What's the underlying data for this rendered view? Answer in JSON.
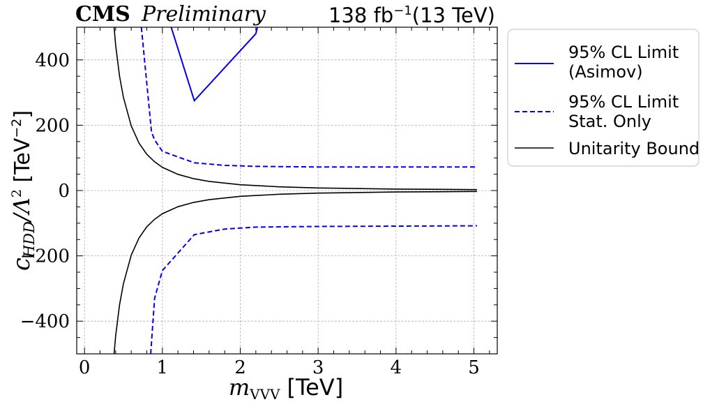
{
  "header": {
    "experiment": "CMS",
    "status": "Preliminary",
    "lumi_value": "138 fb",
    "lumi_exponent": "−1",
    "energy": "(13 TeV)"
  },
  "axes": {
    "x_symbol": "m",
    "x_subscript": "VVV",
    "x_unit": "[TeV]",
    "y_symbol": "c",
    "y_subscript": "HDD",
    "y_mid": "/Λ",
    "y_sup": "2",
    "y_unit_base": " [TeV",
    "y_unit_exp": "−2",
    "y_unit_close": "]"
  },
  "legend": {
    "items": [
      {
        "line1": "95% CL Limit",
        "line2": "(Asimov)",
        "color": "#0000ee",
        "dash": "solid"
      },
      {
        "line1": "95% CL Limit",
        "line2": "Stat. Only",
        "color": "#0000ee",
        "dash": "dashed"
      },
      {
        "line1": "Unitarity Bound",
        "line2": "",
        "color": "#000000",
        "dash": "solid"
      }
    ]
  },
  "chart_data": {
    "type": "line",
    "xlim": [
      -0.1,
      5.3
    ],
    "ylim": [
      -500,
      500
    ],
    "xticks": [
      0,
      1,
      2,
      3,
      4,
      5
    ],
    "yticks": [
      -400,
      -200,
      0,
      200,
      400
    ],
    "xtick_labels": [
      "0",
      "1",
      "2",
      "3",
      "4",
      "5"
    ],
    "ytick_labels": [
      "−400",
      "−200",
      "0",
      "200",
      "400"
    ],
    "grid": true,
    "legend_placement": "outside-right",
    "series": [
      {
        "name": "95% CL Limit (Asimov)",
        "color": "#0000ee",
        "style": "solid",
        "x": [
          1.1,
          1.41,
          2.2,
          2.22
        ],
        "y": [
          510,
          275,
          480,
          500
        ]
      },
      {
        "name": "95% CL Limit Stat. Only",
        "color": "#0000ee",
        "style": "dashed",
        "segments": [
          {
            "x": [
              0.73,
              0.86,
              0.9,
              1.0,
              1.41,
              1.8,
              2.2,
              3.0,
              4.0,
              5.04
            ],
            "y": [
              500,
              180,
              155,
              120,
              85,
              77,
              74,
              72,
              72,
              72
            ]
          },
          {
            "x": [
              0.85,
              0.9,
              1.0,
              1.41,
              1.8,
              2.2,
              3.0,
              4.0,
              5.04
            ],
            "y": [
              -500,
              -330,
              -245,
              -135,
              -118,
              -112,
              -110,
              -109,
              -108
            ]
          }
        ]
      },
      {
        "name": "Unitarity Bound",
        "color": "#000000",
        "style": "solid",
        "segments": [
          {
            "x": [
              0.38,
              0.4,
              0.45,
              0.5,
              0.6,
              0.7,
              0.8,
              0.9,
              1.0,
              1.2,
              1.4,
              1.6,
              2.0,
              2.5,
              3.0,
              4.0,
              5.04
            ],
            "y": [
              500,
              445,
              350,
              285,
              198,
              145,
              111,
              88,
              71,
              49.5,
              36.4,
              27.9,
              17.8,
              11.4,
              7.9,
              4.5,
              2.8
            ]
          },
          {
            "x": [
              0.38,
              0.4,
              0.45,
              0.5,
              0.6,
              0.7,
              0.8,
              0.9,
              1.0,
              1.2,
              1.4,
              1.6,
              2.0,
              2.5,
              3.0,
              4.0,
              5.04
            ],
            "y": [
              -500,
              -445,
              -350,
              -285,
              -198,
              -145,
              -111,
              -88,
              -71,
              -49.5,
              -36.4,
              -27.9,
              -17.8,
              -11.4,
              -7.9,
              -4.5,
              -2.8
            ]
          }
        ]
      }
    ]
  }
}
